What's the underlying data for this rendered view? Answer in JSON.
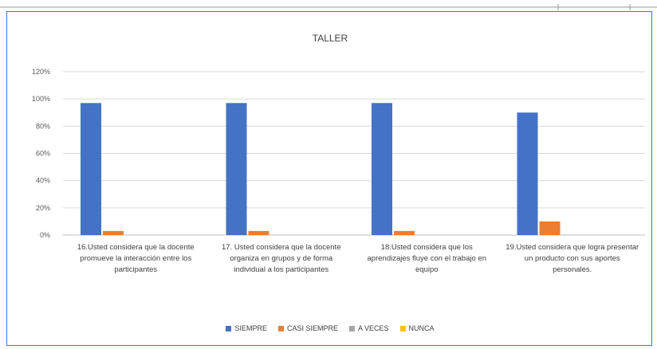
{
  "chart_data": {
    "type": "bar",
    "title": "TALLER",
    "categories": [
      "16.Usted considera que la docente promueve la interacción entre los participantes",
      "17. Usted considera que la docente organiza en grupos y de forma individual a los participantes",
      "18.Usted considera que los aprendizajes fluye con el trabajo en equipo",
      "19.Usted considera que logra presentar un producto con sus aportes personales."
    ],
    "series": [
      {
        "name": "SIEMPRE",
        "color": "#4472c4",
        "values": [
          0.97,
          0.97,
          0.97,
          0.9
        ]
      },
      {
        "name": "CASI SIEMPRE",
        "color": "#ed7d31",
        "values": [
          0.03,
          0.03,
          0.03,
          0.1
        ]
      },
      {
        "name": "A VECES",
        "color": "#a5a5a5",
        "values": [
          0,
          0,
          0,
          0
        ]
      },
      {
        "name": "NUNCA",
        "color": "#ffc000",
        "values": [
          0,
          0,
          0,
          0
        ]
      }
    ],
    "yticks": [
      "0%",
      "20%",
      "40%",
      "60%",
      "80%",
      "100%",
      "120%"
    ],
    "ylim": [
      0,
      1.2
    ],
    "grid": true,
    "legend_position": "bottom"
  }
}
